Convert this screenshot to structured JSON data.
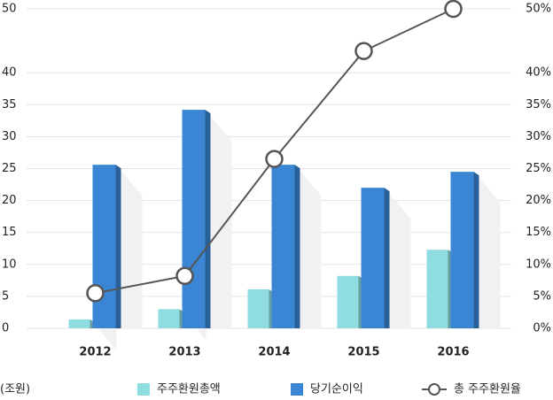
{
  "chart_data": {
    "type": "bar",
    "y_label": "(조원)",
    "categories": [
      "2012",
      "2013",
      "2014",
      "2015",
      "2016"
    ],
    "series": [
      {
        "name": "주주환원총액",
        "color": "#8fdde0",
        "values": [
          1.4,
          3.0,
          6.1,
          8.2,
          12.3
        ]
      },
      {
        "name": "당기순이익",
        "color": "#3a86d4",
        "values": [
          25.6,
          34.2,
          25.6,
          22.0,
          24.5
        ]
      },
      {
        "name": "총 주주환원율",
        "type": "line",
        "axis": "y2",
        "color": "#555555",
        "values": [
          5.5,
          8.2,
          26.5,
          43.4,
          50
        ]
      }
    ],
    "ylim": [
      0,
      50
    ],
    "yticks": [
      0,
      5,
      10,
      15,
      20,
      25,
      30,
      35,
      40,
      50
    ],
    "y2lim": [
      0,
      50
    ],
    "y2ticks": [
      {
        "value": 0,
        "label": "0%"
      },
      {
        "value": 5,
        "label": "5%"
      },
      {
        "value": 10,
        "label": "10%"
      },
      {
        "value": 15,
        "label": "15%"
      },
      {
        "value": 20,
        "label": "20%"
      },
      {
        "value": 25,
        "label": "25%"
      },
      {
        "value": 30,
        "label": "30%"
      },
      {
        "value": 35,
        "label": "35%"
      },
      {
        "value": 40,
        "label": "40%"
      },
      {
        "value": 50,
        "label": "50%"
      }
    ],
    "grid": true
  }
}
